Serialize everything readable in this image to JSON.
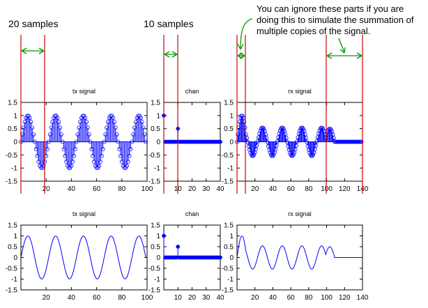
{
  "annotations": {
    "left_label": "20 samples",
    "mid_label": "10 samples",
    "note_lines": [
      "You can ignore these parts if you are",
      "doing this to simulate the summation of",
      "multiple copies of the signal."
    ]
  },
  "colors": {
    "signal": "#0000ff",
    "marker_line": "#cc0000",
    "arrow": "#009900",
    "axis": "#000000"
  },
  "chart_data": [
    {
      "type": "line",
      "subtype": "stem",
      "title": "tx signal",
      "series": [
        {
          "function": "sin",
          "period": 22,
          "amplitude": 1,
          "samples": 100,
          "marker": "open-circle"
        }
      ],
      "xlim": [
        0,
        100
      ],
      "ylim": [
        -1.5,
        1.5
      ],
      "xticks": [
        "20",
        "40",
        "60",
        "80",
        "100"
      ],
      "yticks": [
        "1.5",
        "1",
        "0.5",
        "0",
        "-0.5",
        "-1",
        "-1.5"
      ]
    },
    {
      "type": "line",
      "subtype": "stem",
      "title": "chan",
      "series": [
        {
          "impulses": [
            {
              "x": 0,
              "y": 1
            },
            {
              "x": 10,
              "y": 0.5
            }
          ],
          "length": 40,
          "marker": "filled-circle"
        }
      ],
      "xlim": [
        0,
        40
      ],
      "ylim": [
        -1.5,
        1.5
      ],
      "xticks": [
        "10",
        "20",
        "30",
        "40"
      ],
      "yticks": [
        "1.5",
        "1",
        "0.5",
        "0",
        "-0.5",
        "-1",
        "-1.5"
      ]
    },
    {
      "type": "line",
      "subtype": "stem",
      "title": "rx signal",
      "series": [
        {
          "formula": "tx[n] + 0.5*tx[n-10]",
          "samples": 140,
          "marker": "open-circle"
        }
      ],
      "xlim": [
        0,
        140
      ],
      "ylim": [
        -1.5,
        1.5
      ],
      "xticks": [
        "20",
        "40",
        "60",
        "80",
        "100",
        "120",
        "140"
      ],
      "yticks": [
        "1.5",
        "1",
        "0.5",
        "0",
        "-0.5",
        "-1",
        "-1.5"
      ]
    },
    {
      "type": "line",
      "title": "tx signal",
      "series": [
        {
          "function": "sin",
          "period": 22,
          "amplitude": 1,
          "samples": 100
        }
      ],
      "xlim": [
        0,
        100
      ],
      "ylim": [
        -1.5,
        1.5
      ],
      "xticks": [
        "20",
        "40",
        "60",
        "80",
        "100"
      ],
      "yticks": [
        "1.5",
        "1",
        "0.5",
        "0",
        "-0.5",
        "-1",
        "-1.5"
      ]
    },
    {
      "type": "line",
      "subtype": "stem",
      "title": "chan",
      "series": [
        {
          "impulses": [
            {
              "x": 0,
              "y": 1
            },
            {
              "x": 10,
              "y": 0.5
            }
          ],
          "length": 40,
          "marker": "filled-circle"
        }
      ],
      "xlim": [
        0,
        40
      ],
      "ylim": [
        -1.5,
        1.5
      ],
      "xticks": [
        "10",
        "20",
        "30",
        "40"
      ],
      "yticks": [
        "1.5",
        "1",
        "0.5",
        "0",
        "-0.5",
        "-1",
        "-1.5"
      ]
    },
    {
      "type": "line",
      "title": "rx signal",
      "series": [
        {
          "formula": "tx[n] + 0.5*tx[n-10]",
          "samples": 140
        }
      ],
      "xlim": [
        0,
        140
      ],
      "ylim": [
        -1.5,
        1.5
      ],
      "xticks": [
        "20",
        "40",
        "60",
        "80",
        "100",
        "120",
        "140"
      ],
      "yticks": [
        "1.5",
        "1",
        "0.5",
        "0",
        "-0.5",
        "-1",
        "-1.5"
      ]
    }
  ]
}
